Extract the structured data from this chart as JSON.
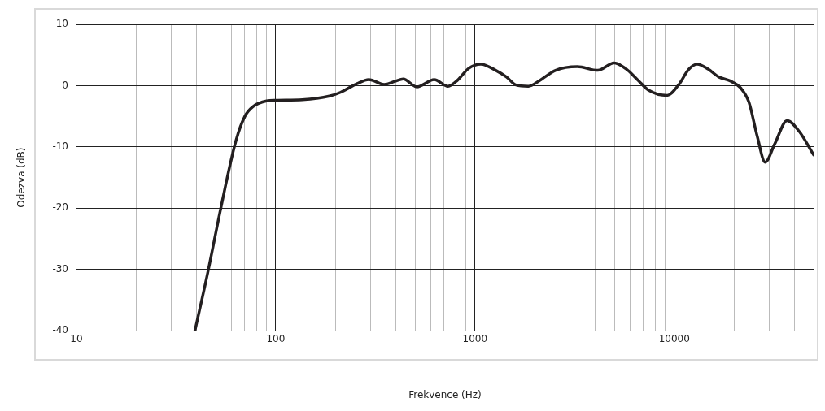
{
  "chart_data": {
    "type": "line",
    "xlabel": "Frekvence (Hz)",
    "ylabel": "Odezva (dB)",
    "xlim": [
      10,
      50000
    ],
    "ylim": [
      -40,
      10
    ],
    "xticks": [
      10,
      {
        "value": 20,
        "label": null
      },
      {
        "value": 30,
        "label": null
      },
      {
        "value": 40,
        "label": null
      },
      {
        "value": 50,
        "label": null
      },
      {
        "value": 60,
        "label": null
      },
      {
        "value": 70,
        "label": null
      },
      {
        "value": 80,
        "label": null
      },
      {
        "value": 90,
        "label": null
      },
      100,
      {
        "value": 200,
        "label": null
      },
      {
        "value": 300,
        "label": null
      },
      {
        "value": 400,
        "label": null
      },
      {
        "value": 500,
        "label": null
      },
      {
        "value": 600,
        "label": null
      },
      {
        "value": 700,
        "label": null
      },
      {
        "value": 800,
        "label": null
      },
      {
        "value": 900,
        "label": null
      },
      1000,
      {
        "value": 2000,
        "label": null
      },
      {
        "value": 3000,
        "label": null
      },
      {
        "value": 4000,
        "label": null
      },
      {
        "value": 5000,
        "label": null
      },
      {
        "value": 6000,
        "label": null
      },
      {
        "value": 7000,
        "label": null
      },
      {
        "value": 8000,
        "label": null
      },
      {
        "value": 9000,
        "label": null
      },
      10000,
      {
        "value": 20000,
        "label": null
      },
      {
        "value": 30000,
        "label": null
      },
      {
        "value": 40000,
        "label": null
      }
    ],
    "yticks": [
      -40,
      -30,
      -20,
      -10,
      0,
      10
    ],
    "log": "x",
    "grid": true,
    "legend": false,
    "marker": "none",
    "line_style": "solid",
    "series": [
      {
        "color": "#231f20",
        "x": [
          39.3,
          46,
          53,
          63,
          70,
          77,
          90,
          100,
          136,
          186,
          211,
          255,
          293,
          350,
          397,
          436,
          510,
          624,
          732,
          818,
          927,
          1069,
          1270,
          1440,
          1606,
          1852,
          2101,
          2537,
          3263,
          4131,
          4988,
          5750,
          6522,
          7396,
          9210,
          10440,
          11850,
          13030,
          14770,
          16740,
          18990,
          21550,
          23680,
          26030,
          28580,
          31920,
          36800,
          42400,
          50000
        ],
        "values": [
          -40,
          -29.9,
          -20,
          -9.1,
          -5,
          -3.4,
          -2.5,
          -2.4,
          -2.3,
          -1.7,
          -1.1,
          0.3,
          1,
          0.2,
          0.7,
          1.1,
          -0.2,
          1,
          -0.1,
          0.9,
          2.8,
          3.5,
          2.5,
          1.4,
          0.1,
          -0.1,
          0.8,
          2.5,
          3.1,
          2.5,
          3.7,
          2.7,
          1,
          -0.7,
          -1.6,
          0,
          2.7,
          3.5,
          2.7,
          1.4,
          0.8,
          -0.4,
          -2.7,
          -8.2,
          -12.5,
          -9.5,
          -5.7,
          -7.5,
          -11.3
        ]
      }
    ]
  }
}
